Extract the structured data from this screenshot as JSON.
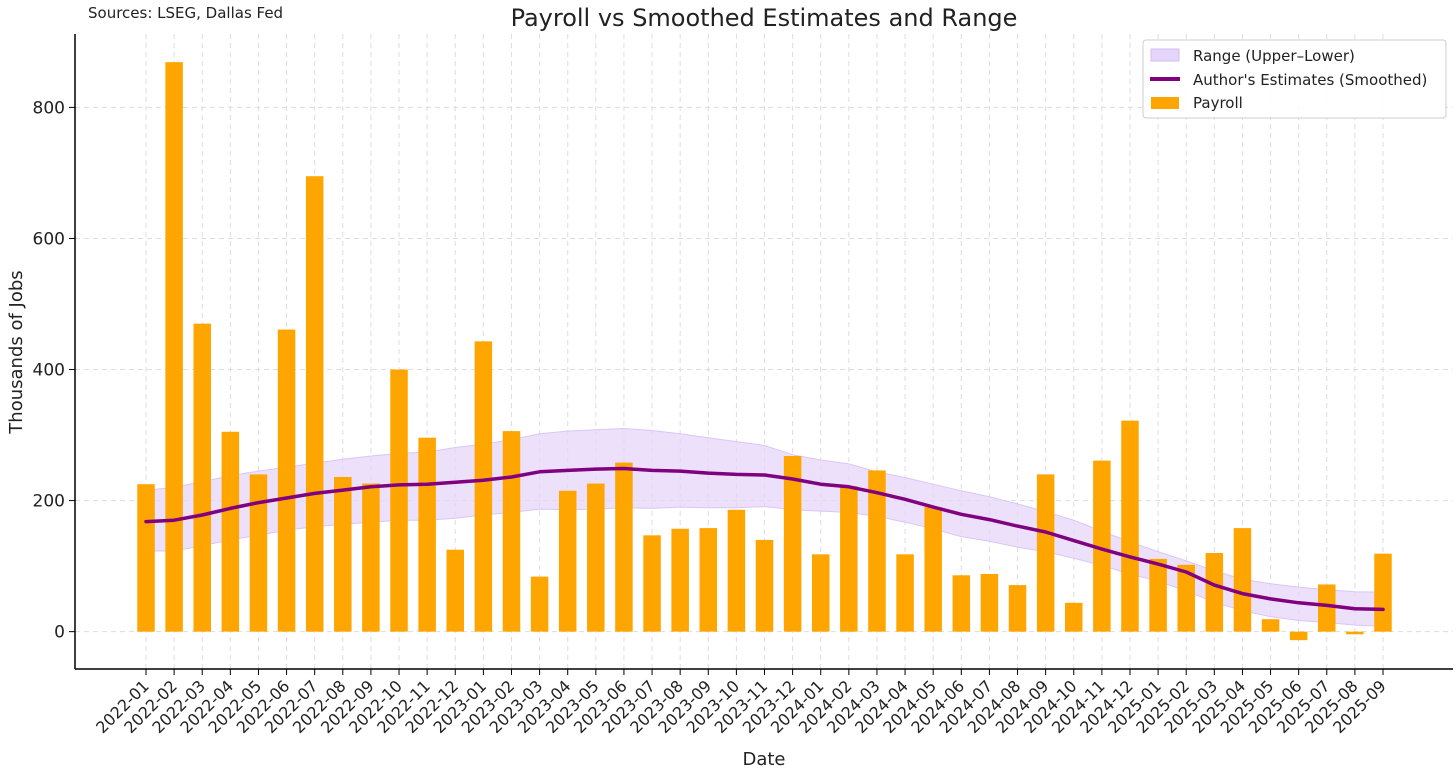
{
  "source_note": "Sources: LSEG, Dallas Fed",
  "chart_data": {
    "type": "bar",
    "title": "Payroll vs Smoothed Estimates and Range",
    "xlabel": "Date",
    "ylabel": "Thousands of Jobs",
    "ylim": [
      -57,
      912
    ],
    "yticks": [
      0,
      200,
      400,
      600,
      800
    ],
    "grid": true,
    "legend_position": "top-right",
    "categories": [
      "2022-01",
      "2022-02",
      "2022-03",
      "2022-04",
      "2022-05",
      "2022-06",
      "2022-07",
      "2022-08",
      "2022-09",
      "2022-10",
      "2022-11",
      "2022-12",
      "2023-01",
      "2023-02",
      "2023-03",
      "2023-04",
      "2023-05",
      "2023-06",
      "2023-07",
      "2023-08",
      "2023-09",
      "2023-10",
      "2023-11",
      "2023-12",
      "2024-01",
      "2024-02",
      "2024-03",
      "2024-04",
      "2024-05",
      "2024-06",
      "2024-07",
      "2024-08",
      "2024-09",
      "2024-10",
      "2024-11",
      "2024-12",
      "2025-01",
      "2025-02",
      "2025-03",
      "2025-04",
      "2025-05",
      "2025-06",
      "2025-07",
      "2025-08",
      "2025-09"
    ],
    "series": [
      {
        "name": "Payroll",
        "kind": "bar",
        "color": "#FFA500",
        "values": [
          225,
          869,
          470,
          305,
          240,
          461,
          695,
          236,
          226,
          400,
          296,
          125,
          443,
          306,
          84,
          215,
          226,
          258,
          147,
          157,
          158,
          186,
          140,
          268,
          118,
          222,
          246,
          118,
          190,
          86,
          88,
          71,
          240,
          44,
          261,
          322,
          111,
          102,
          120,
          158,
          19,
          -13,
          72,
          -4,
          119
        ]
      },
      {
        "name": "Author's Estimates (Smoothed)",
        "kind": "line",
        "color": "#800080",
        "values": [
          168,
          170,
          178,
          188,
          197,
          204,
          211,
          216,
          221,
          224,
          225,
          228,
          231,
          236,
          244,
          246,
          248,
          249,
          246,
          245,
          242,
          240,
          239,
          233,
          225,
          221,
          212,
          202,
          190,
          179,
          171,
          161,
          152,
          139,
          126,
          114,
          103,
          91,
          71,
          58,
          50,
          44,
          40,
          35,
          34
        ]
      },
      {
        "name": "Range (Upper–Lower)",
        "kind": "band",
        "color": "#E6D5FA",
        "upper": [
          216,
          220,
          229,
          238,
          245,
          251,
          257,
          263,
          268,
          272,
          274,
          281,
          286,
          293,
          302,
          306,
          308,
          310,
          307,
          302,
          296,
          290,
          284,
          270,
          262,
          256,
          244,
          235,
          225,
          215,
          206,
          195,
          183,
          170,
          153,
          137,
          122,
          108,
          93,
          80,
          73,
          68,
          64,
          61,
          60
        ],
        "lower": [
          123,
          123,
          131,
          140,
          147,
          155,
          160,
          164,
          167,
          170,
          170,
          173,
          178,
          182,
          187,
          186,
          187,
          189,
          188,
          190,
          189,
          189,
          191,
          186,
          184,
          182,
          176,
          167,
          157,
          145,
          138,
          129,
          122,
          112,
          101,
          88,
          77,
          62,
          45,
          32,
          23,
          17,
          14,
          10,
          8
        ]
      }
    ]
  }
}
